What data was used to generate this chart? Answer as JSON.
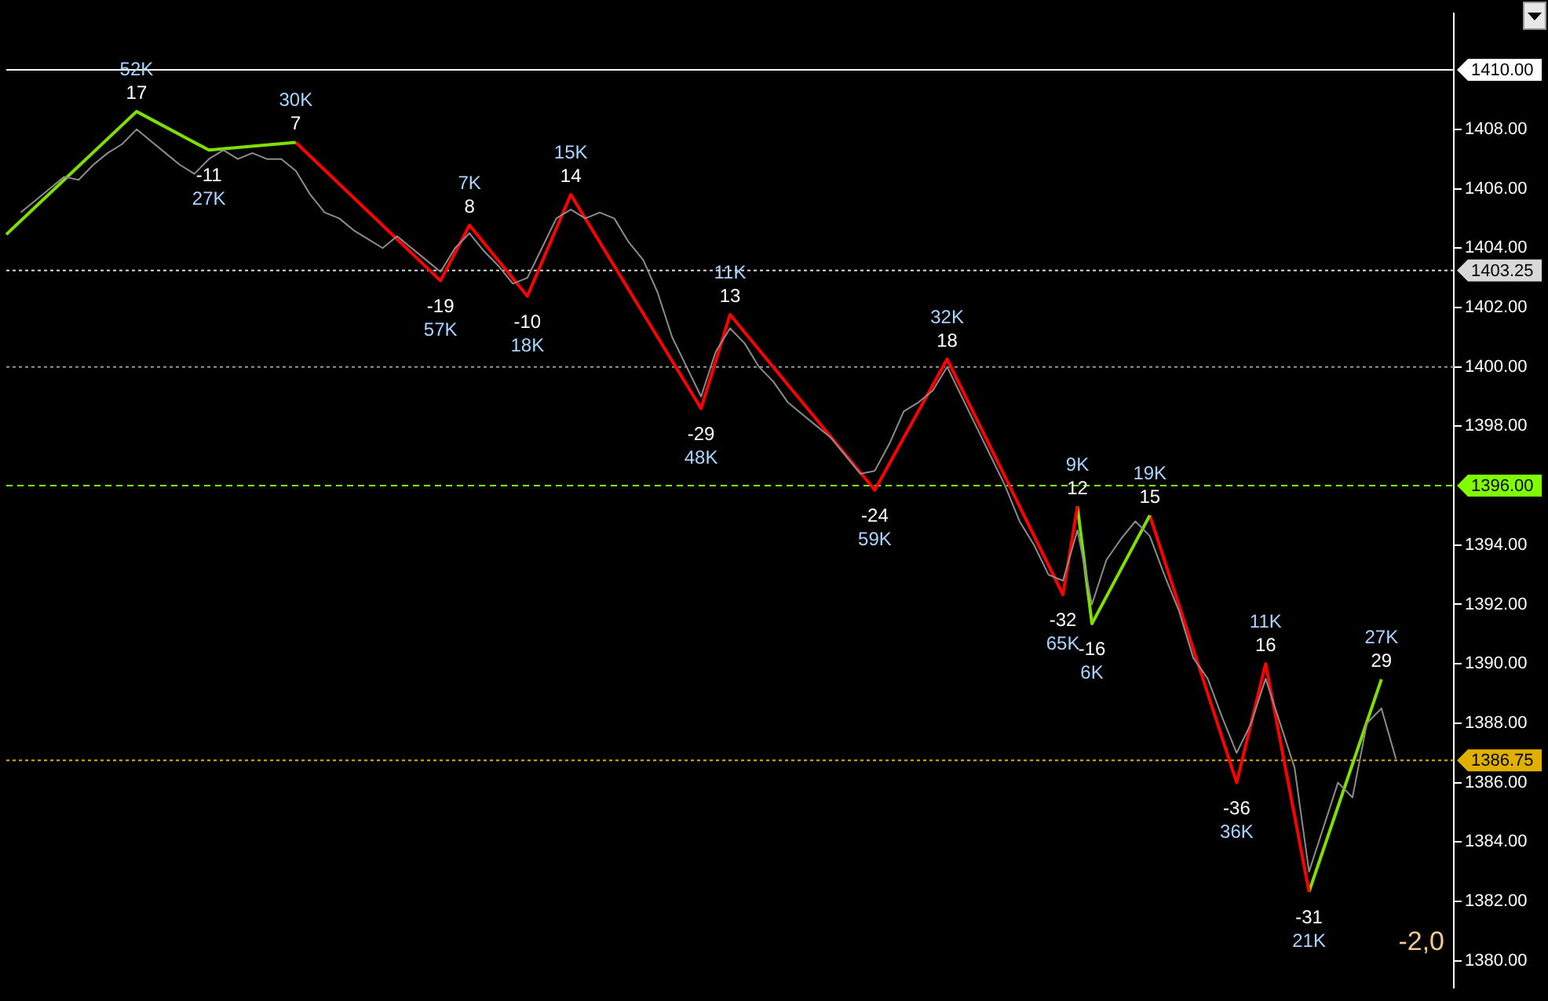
{
  "chart_data": {
    "type": "line",
    "ylim": [
      1379.1,
      1411.9
    ],
    "tick_labels": "y",
    "grid": false,
    "legend": false,
    "marker": "none",
    "line_style": "solid",
    "categories": [
      null,
      null,
      null,
      null,
      null,
      null,
      null,
      null,
      null,
      null,
      null,
      null,
      null,
      null,
      null,
      null,
      null,
      null,
      null,
      null,
      null,
      null,
      null,
      null,
      null,
      null,
      null,
      null,
      null,
      null,
      null,
      null,
      null,
      null,
      null,
      null,
      null,
      null,
      null,
      null,
      null,
      null,
      null,
      null,
      null,
      null,
      null,
      null,
      null,
      null,
      null,
      null,
      null,
      null,
      null,
      null,
      null,
      null,
      null,
      null,
      null,
      null,
      null,
      null,
      null,
      null,
      null,
      null,
      null,
      null,
      null,
      null,
      null,
      null,
      null,
      null,
      null,
      null,
      null,
      null,
      null,
      null,
      null,
      null,
      null,
      null,
      null,
      null,
      null,
      null,
      null,
      null,
      null,
      null,
      null,
      null,
      null,
      null,
      null,
      null,
      null
    ],
    "yticks": [
      {
        "value": 1380,
        "label": "1380.00"
      },
      {
        "value": 1382,
        "label": "1382.00"
      },
      {
        "value": 1384,
        "label": "1384.00"
      },
      {
        "value": 1386,
        "label": "1386.00"
      },
      {
        "value": 1388,
        "label": "1388.00"
      },
      {
        "value": 1390,
        "label": "1390.00"
      },
      {
        "value": 1392,
        "label": "1392.00"
      },
      {
        "value": 1394,
        "label": "1394.00"
      },
      {
        "value": 1398,
        "label": "1398.00"
      },
      {
        "value": 1400,
        "label": "1400.00"
      },
      {
        "value": 1402,
        "label": "1402.00"
      },
      {
        "value": 1404,
        "label": "1404.00"
      },
      {
        "value": 1406,
        "label": "1406.00"
      },
      {
        "value": 1408,
        "label": "1408.00"
      }
    ],
    "series": [
      {
        "color": "#8c8c8c",
        "values": [
          null,
          1405.2,
          1405.6,
          1406.0,
          1406.4,
          1406.3,
          1406.8,
          1407.2,
          1407.5,
          1408.0,
          1407.6,
          1407.2,
          1406.8,
          1406.5,
          1407.0,
          1407.3,
          1407.0,
          1407.2,
          1407.0,
          1407.0,
          1406.6,
          1405.8,
          1405.2,
          1405.0,
          1404.6,
          1404.3,
          1404.0,
          1404.4,
          1404.0,
          1403.6,
          1403.2,
          1404.0,
          1404.5,
          1403.9,
          1403.4,
          1402.8,
          1403.0,
          1404.0,
          1405.0,
          1405.3,
          1405.0,
          1405.2,
          1405.0,
          1404.2,
          1403.6,
          1402.5,
          1401.0,
          1400.0,
          1399.0,
          1400.5,
          1401.3,
          1400.8,
          1400.0,
          1399.5,
          1398.8,
          1398.4,
          1398.0,
          1397.6,
          1397.0,
          1396.4,
          1396.5,
          1397.4,
          1398.5,
          1398.8,
          1399.2,
          1400.0,
          1399.0,
          1398.0,
          1397.0,
          1396.0,
          1394.8,
          1394.0,
          1393.0,
          1392.8,
          1394.5,
          1392.0,
          1393.5,
          1394.2,
          1394.8,
          1394.3,
          1393.0,
          1391.8,
          1390.2,
          1389.5,
          1388.2,
          1387.0,
          1388.0,
          1389.5,
          1388.0,
          1386.5,
          1383.0,
          1384.5,
          1386.0,
          1385.5,
          1388.0,
          1388.5,
          1386.8,
          null,
          null,
          null,
          null
        ]
      },
      {
        "color": "#7fe000",
        "values": [
          1404.46,
          null,
          null,
          null,
          null,
          null,
          null,
          null,
          null,
          1408.6,
          null,
          null,
          null,
          null,
          1407.3,
          null,
          null,
          null,
          null,
          null,
          1407.56,
          null,
          null,
          null,
          null,
          null,
          null,
          null,
          null,
          null,
          null,
          null,
          null,
          null,
          null,
          null,
          null,
          null,
          null,
          null,
          null,
          null,
          null,
          null,
          null,
          null,
          null,
          null,
          null,
          null,
          null,
          null,
          null,
          null,
          null,
          null,
          null,
          null,
          null,
          null,
          null,
          null,
          null,
          null,
          null,
          null,
          null,
          null,
          null,
          null,
          null,
          null,
          null,
          null,
          null,
          null,
          null,
          null,
          null,
          null,
          null,
          null,
          null,
          null,
          null,
          null,
          null,
          null,
          null,
          null,
          null,
          null,
          null,
          null,
          null,
          null,
          null,
          null,
          null,
          null,
          null
        ]
      },
      {
        "color": "#ff0000",
        "values": [
          null,
          null,
          null,
          null,
          null,
          null,
          null,
          null,
          null,
          null,
          null,
          null,
          null,
          null,
          null,
          null,
          null,
          null,
          null,
          null,
          1407.56,
          null,
          null,
          null,
          null,
          null,
          null,
          null,
          null,
          null,
          1402.9,
          null,
          1404.77,
          null,
          null,
          null,
          1402.38,
          null,
          null,
          1405.8,
          null,
          null,
          null,
          null,
          null,
          null,
          null,
          null,
          1398.6,
          null,
          1401.76,
          null,
          null,
          null,
          null,
          null,
          null,
          null,
          null,
          null,
          1395.85,
          null,
          null,
          null,
          null,
          1400.26,
          null,
          null,
          null,
          null,
          null,
          null,
          null,
          1392.33,
          1395.3,
          null,
          null,
          null,
          null,
          null,
          null,
          null,
          null,
          null,
          null,
          null,
          null,
          null,
          null,
          null,
          null,
          null,
          null,
          null,
          null,
          null,
          null,
          null,
          null,
          null,
          null
        ]
      },
      {
        "color": "#7fe000",
        "values": [
          null,
          null,
          null,
          null,
          null,
          null,
          null,
          null,
          null,
          null,
          null,
          null,
          null,
          null,
          null,
          null,
          null,
          null,
          null,
          null,
          null,
          null,
          null,
          null,
          null,
          null,
          null,
          null,
          null,
          null,
          null,
          null,
          null,
          null,
          null,
          null,
          null,
          null,
          null,
          null,
          null,
          null,
          null,
          null,
          null,
          null,
          null,
          null,
          null,
          null,
          null,
          null,
          null,
          null,
          null,
          null,
          null,
          null,
          null,
          null,
          null,
          null,
          null,
          null,
          null,
          null,
          null,
          null,
          null,
          null,
          null,
          null,
          null,
          null,
          1395.3,
          1391.35,
          null,
          null,
          null,
          1395.0,
          null,
          null,
          null,
          null,
          null,
          null,
          null,
          null,
          null,
          null,
          null,
          null,
          null,
          null,
          null,
          null,
          null,
          null,
          null,
          null,
          null
        ]
      },
      {
        "color": "#ff0000",
        "values": [
          null,
          null,
          null,
          null,
          null,
          null,
          null,
          null,
          null,
          null,
          null,
          null,
          null,
          null,
          null,
          null,
          null,
          null,
          null,
          null,
          null,
          null,
          null,
          null,
          null,
          null,
          null,
          null,
          null,
          null,
          null,
          null,
          null,
          null,
          null,
          null,
          null,
          null,
          null,
          null,
          null,
          null,
          null,
          null,
          null,
          null,
          null,
          null,
          null,
          null,
          null,
          null,
          null,
          null,
          null,
          null,
          null,
          null,
          null,
          null,
          null,
          null,
          null,
          null,
          null,
          null,
          null,
          null,
          null,
          null,
          null,
          null,
          null,
          null,
          null,
          null,
          null,
          null,
          null,
          1395.0,
          null,
          null,
          null,
          null,
          null,
          1386.0,
          null,
          1390.0,
          null,
          null,
          1382.33,
          null,
          null,
          null,
          null,
          null,
          null,
          null,
          null,
          null,
          null
        ]
      },
      {
        "color": "#7fe000",
        "values": [
          null,
          null,
          null,
          null,
          null,
          null,
          null,
          null,
          null,
          null,
          null,
          null,
          null,
          null,
          null,
          null,
          null,
          null,
          null,
          null,
          null,
          null,
          null,
          null,
          null,
          null,
          null,
          null,
          null,
          null,
          null,
          null,
          null,
          null,
          null,
          null,
          null,
          null,
          null,
          null,
          null,
          null,
          null,
          null,
          null,
          null,
          null,
          null,
          null,
          null,
          null,
          null,
          null,
          null,
          null,
          null,
          null,
          null,
          null,
          null,
          null,
          null,
          null,
          null,
          null,
          null,
          null,
          null,
          null,
          null,
          null,
          null,
          null,
          null,
          null,
          null,
          null,
          null,
          null,
          null,
          null,
          null,
          null,
          null,
          null,
          null,
          null,
          null,
          null,
          null,
          1382.33,
          null,
          null,
          null,
          null,
          1389.48,
          null,
          null,
          null,
          null,
          null
        ]
      }
    ],
    "ref_lines": [
      {
        "axis": "y",
        "value": 1410,
        "label": "1410.00",
        "color": "#ffffff",
        "line_style": "solid"
      },
      {
        "axis": "y",
        "value": 1403.25,
        "label": "1403.25",
        "color": "#d8d8d8",
        "line_style": "dotted"
      },
      {
        "axis": "y",
        "value": 1400,
        "label": null,
        "color": "#8a9a9a",
        "line_style": "dotted"
      },
      {
        "axis": "y",
        "value": 1396,
        "label": "1396.00",
        "color": "#80ff00",
        "line_style": "dashed"
      },
      {
        "axis": "y",
        "value": 1386.75,
        "label": "1386.75",
        "color": "#e0b000",
        "line_style": "dotted"
      }
    ],
    "annotations": [
      {
        "text": "52K\n17",
        "y": 1408.6
      },
      {
        "text": "-11\n27K",
        "y": 1407.3
      },
      {
        "text": "30K\n7",
        "y": 1407.56
      },
      {
        "text": "-19\n57K",
        "y": 1402.9
      },
      {
        "text": "7K\n8",
        "y": 1404.77
      },
      {
        "text": "-10\n18K",
        "y": 1402.38
      },
      {
        "text": "15K\n14",
        "y": 1405.8
      },
      {
        "text": "-29\n48K",
        "y": 1398.6
      },
      {
        "text": "11K\n13",
        "y": 1401.76
      },
      {
        "text": "-24\n59K",
        "y": 1395.85
      },
      {
        "text": "32K\n18",
        "y": 1400.26
      },
      {
        "text": "-32\n65K",
        "y": 1392.33
      },
      {
        "text": "9K\n12",
        "y": 1395.3
      },
      {
        "text": "-16\n6K",
        "y": 1391.35
      },
      {
        "text": "19K\n15",
        "y": 1395.0
      },
      {
        "text": "-36\n36K",
        "y": 1386.0
      },
      {
        "text": "11K\n16",
        "y": 1390.0
      },
      {
        "text": "-31\n21K",
        "y": 1382.33
      },
      {
        "text": "27K\n29",
        "y": 1389.48
      },
      "-2,0"
    ]
  }
}
